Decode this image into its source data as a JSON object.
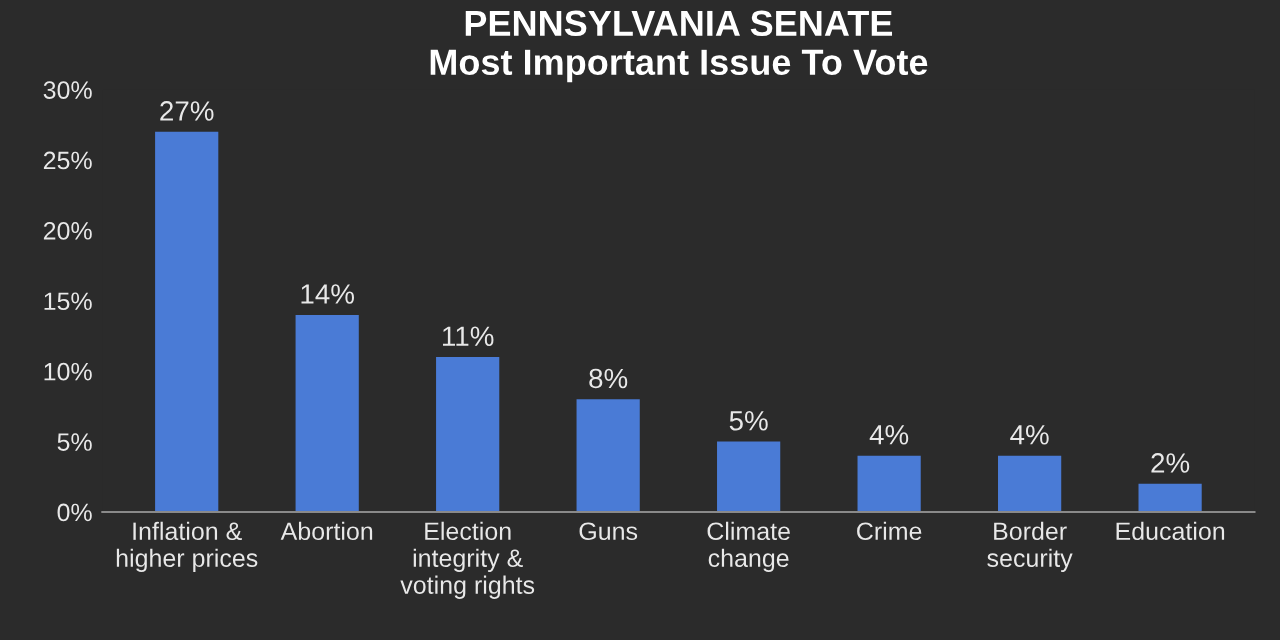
{
  "chart_data": {
    "type": "bar",
    "title": "PENNSYLVANIA SENATE\nMost Important Issue To Vote",
    "categories": [
      "Inflation &\nhigher prices",
      "Abortion",
      "Election\nintegrity &\nvoting rights",
      "Guns",
      "Climate\nchange",
      "Crime",
      "Border\nsecurity",
      "Education"
    ],
    "values": [
      27,
      14,
      11,
      8,
      5,
      4,
      4,
      2
    ],
    "value_labels": [
      "27%",
      "14%",
      "11%",
      "8%",
      "5%",
      "4%",
      "4%",
      "2%"
    ],
    "color": "#4a7bd6",
    "ylim": [
      0,
      30
    ],
    "yticks": [
      {
        "value": 0,
        "label": "0%"
      },
      {
        "value": 5,
        "label": "5%"
      },
      {
        "value": 10,
        "label": "10%"
      },
      {
        "value": 15,
        "label": "15%"
      },
      {
        "value": 20,
        "label": "20%"
      },
      {
        "value": 25,
        "label": "25%"
      },
      {
        "value": 30,
        "label": "30%"
      }
    ],
    "grid": false,
    "legend": false
  }
}
